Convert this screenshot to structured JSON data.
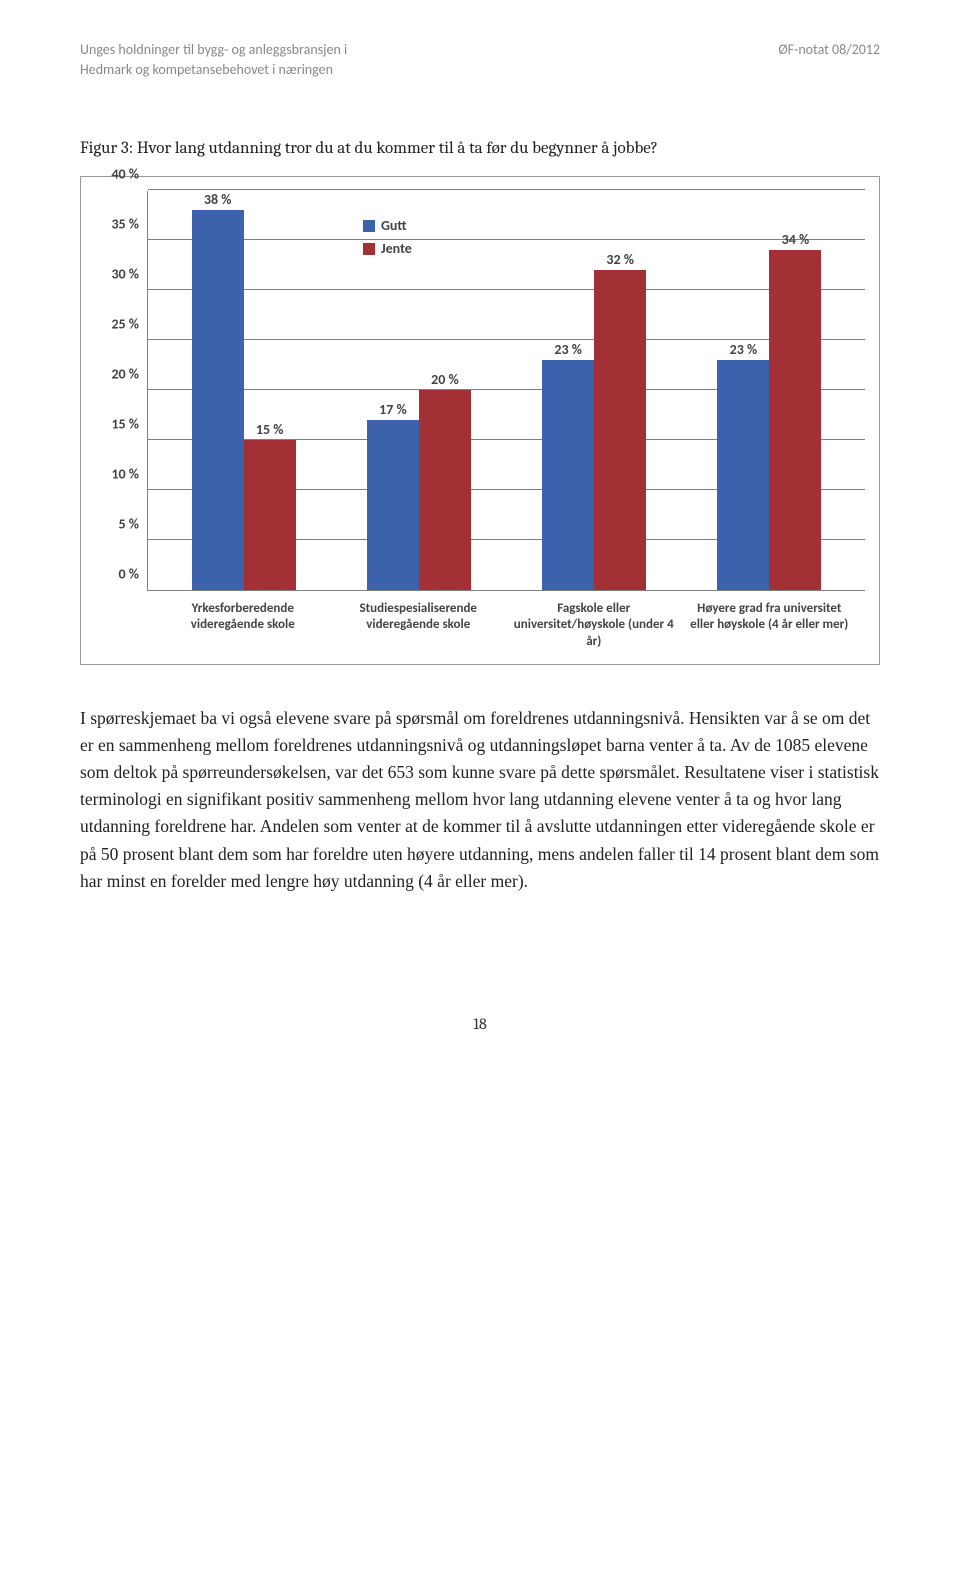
{
  "header": {
    "left_line1": "Unges holdninger til bygg- og anleggsbransjen i",
    "left_line2": "Hedmark og kompetansebehovet i næringen",
    "right": "ØF-notat 08/2012"
  },
  "figure": {
    "caption": "Figur 3: Hvor lang utdanning tror du at du kommer til å ta før du begynner å jobbe?"
  },
  "chart": {
    "type": "grouped-bar",
    "ylim_max": 40,
    "ytick_step": 5,
    "y_ticks": [
      "0 %",
      "5 %",
      "10 %",
      "15 %",
      "20 %",
      "25 %",
      "30 %",
      "35 %",
      "40 %"
    ],
    "colors": {
      "gutt": "#3b62ab",
      "jente": "#a33034",
      "gridline": "#808080",
      "background": "#ffffff"
    },
    "legend": [
      {
        "label": "Gutt",
        "color_key": "gutt"
      },
      {
        "label": "Jente",
        "color_key": "jente"
      }
    ],
    "categories": [
      {
        "label": "Yrkesforberedende videregående skole",
        "gutt": 38,
        "jente": 15,
        "gutt_label": "38 %",
        "jente_label": "15 %"
      },
      {
        "label": "Studiespesialiserende videregående skole",
        "gutt": 17,
        "jente": 20,
        "gutt_label": "17 %",
        "jente_label": "20 %"
      },
      {
        "label": "Fagskole eller universitet/høyskole (under 4 år)",
        "gutt": 23,
        "jente": 32,
        "gutt_label": "23 %",
        "jente_label": "32 %"
      },
      {
        "label": "Høyere grad fra universitet eller høyskole (4 år eller mer)",
        "gutt": 23,
        "jente": 34,
        "gutt_label": "23 %",
        "jente_label": "34 %"
      }
    ]
  },
  "body_paragraph": "I spørreskjemaet ba vi også elevene svare på spørsmål om foreldrenes utdanningsnivå. Hensikten var å se om det er en sammenheng mellom foreldrenes utdanningsnivå og utdanningsløpet barna venter å ta. Av de 1085 elevene som deltok på spørreundersøkelsen, var det 653 som kunne svare på dette spørsmålet. Resultatene viser i statistisk terminologi en signifikant positiv sammenheng mellom hvor lang utdanning elevene venter å ta og hvor lang utdanning foreldrene har. Andelen som venter at de kommer til å avslutte utdanningen etter videregående skole er på 50 prosent blant dem som har foreldre uten høyere utdanning, mens andelen faller til 14 prosent blant dem som har minst en forelder med lengre høy utdanning (4 år eller mer).",
  "page_number": "18"
}
